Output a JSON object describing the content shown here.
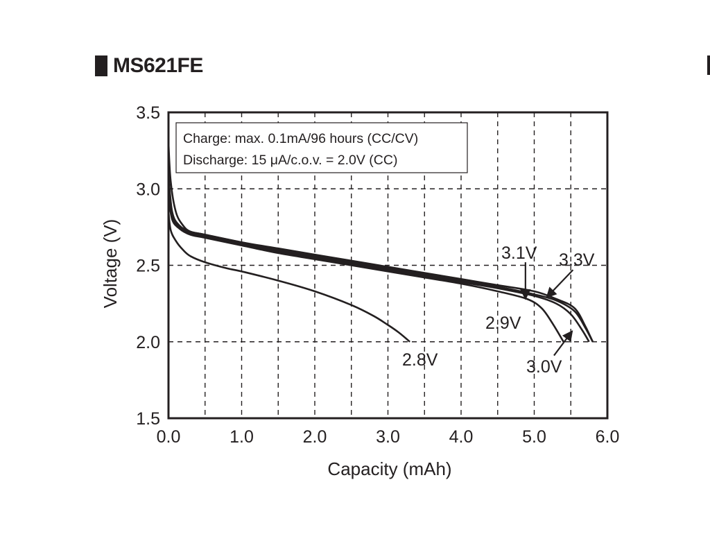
{
  "title": "MS621FE",
  "chart_data": {
    "type": "line",
    "title": "MS621FE",
    "xlabel": "Capacity (mAh)",
    "ylabel": "Voltage (V)",
    "xlim": [
      0,
      6
    ],
    "ylim": [
      1.5,
      3.5
    ],
    "x_ticks": [
      "0.0",
      "1.0",
      "2.0",
      "3.0",
      "4.0",
      "5.0",
      "6.0"
    ],
    "y_ticks": [
      "1.5",
      "2.0",
      "2.5",
      "3.0",
      "3.5"
    ],
    "grid": "dashed",
    "legend_position": "top-left",
    "conditions": [
      "Charge: max. 0.1mA/96 hours (CC/CV)",
      "Discharge: 15 μA/c.o.v. = 2.0V (CC)"
    ],
    "series": [
      {
        "name": "2.8V",
        "x": [
          0.0,
          0.03,
          0.1,
          0.2,
          0.3,
          0.5,
          0.8,
          1.0,
          1.5,
          2.0,
          2.5,
          2.8,
          3.0,
          3.15,
          3.3
        ],
        "y": [
          2.85,
          2.73,
          2.66,
          2.6,
          2.56,
          2.52,
          2.48,
          2.46,
          2.4,
          2.33,
          2.24,
          2.17,
          2.11,
          2.06,
          2.0
        ]
      },
      {
        "name": "2.9V",
        "x": [
          0.0,
          0.05,
          0.15,
          0.3,
          0.5,
          1.0,
          1.5,
          2.0,
          2.5,
          3.0,
          3.5,
          4.0,
          4.5,
          4.9,
          5.1,
          5.25,
          5.4
        ],
        "y": [
          2.95,
          2.8,
          2.74,
          2.7,
          2.68,
          2.63,
          2.58,
          2.54,
          2.5,
          2.46,
          2.42,
          2.38,
          2.33,
          2.28,
          2.22,
          2.12,
          2.0
        ]
      },
      {
        "name": "3.0V",
        "x": [
          0.0,
          0.05,
          0.15,
          0.3,
          0.5,
          1.0,
          1.5,
          2.0,
          2.5,
          3.0,
          3.5,
          4.0,
          4.5,
          5.0,
          5.3,
          5.5,
          5.65,
          5.75
        ],
        "y": [
          3.02,
          2.82,
          2.75,
          2.71,
          2.69,
          2.64,
          2.59,
          2.55,
          2.51,
          2.47,
          2.43,
          2.39,
          2.35,
          2.3,
          2.25,
          2.18,
          2.08,
          2.0
        ]
      },
      {
        "name": "3.1V",
        "x": [
          0.0,
          0.05,
          0.15,
          0.3,
          0.5,
          1.0,
          1.5,
          2.0,
          2.5,
          3.0,
          3.5,
          4.0,
          4.5,
          5.0,
          5.3,
          5.55,
          5.7,
          5.8
        ],
        "y": [
          3.1,
          2.85,
          2.76,
          2.72,
          2.7,
          2.65,
          2.6,
          2.56,
          2.52,
          2.48,
          2.44,
          2.4,
          2.36,
          2.31,
          2.27,
          2.2,
          2.09,
          2.0
        ]
      },
      {
        "name": "3.3V",
        "x": [
          0.0,
          0.03,
          0.1,
          0.2,
          0.3,
          0.5,
          1.0,
          1.5,
          2.0,
          2.5,
          3.0,
          3.5,
          4.0,
          4.5,
          5.0,
          5.3,
          5.55,
          5.7,
          5.8
        ],
        "y": [
          3.3,
          3.05,
          2.85,
          2.76,
          2.72,
          2.7,
          2.65,
          2.61,
          2.57,
          2.53,
          2.49,
          2.45,
          2.41,
          2.37,
          2.33,
          2.28,
          2.22,
          2.1,
          2.0
        ]
      }
    ],
    "annotations": [
      {
        "text": "3.1V",
        "arrow_from": [
          4.88,
          2.52
        ],
        "arrow_to": [
          4.88,
          2.28
        ]
      },
      {
        "text": "3.3V",
        "arrow_from": [
          5.53,
          2.47
        ],
        "arrow_to": [
          5.17,
          2.29
        ]
      },
      {
        "text": "2.9V"
      },
      {
        "text": "2.8V"
      },
      {
        "text": "3.0V",
        "arrow_from": [
          5.27,
          1.91
        ],
        "arrow_to": [
          5.52,
          2.07
        ]
      }
    ]
  }
}
